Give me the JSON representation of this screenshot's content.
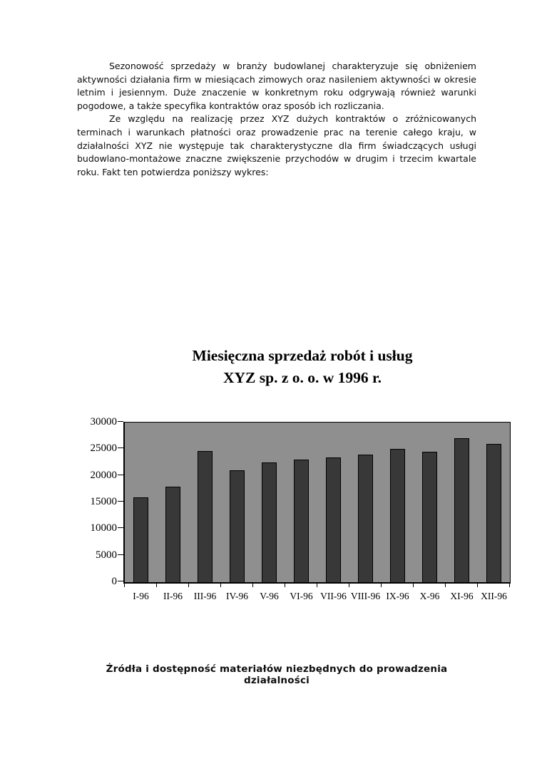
{
  "document": {
    "paragraphs": [
      "Sezonowość sprzedaży w branży budowlanej charakteryzuje się obniżeniem aktywności działania firm w miesiącach zimowych oraz nasileniem aktywności w okresie letnim i jesiennym. Duże znaczenie w konkretnym roku odgrywają również warunki pogodowe, a także specyfika kontraktów oraz sposób ich rozliczania.",
      "Ze względu na realizację przez XYZ dużych kontraktów o zróżnicowanych terminach i warunkach płatności oraz prowadzenie prac na terenie całego kraju, w działalności XYZ nie występuje tak charakterystyczne dla firm świadczących usługi budowlano-montażowe znaczne zwiększenie przychodów w drugim i trzecim kwartale roku. Fakt ten potwierdza poniższy wykres:"
    ],
    "section_heading": "Źródła i dostępność materiałów niezbędnych do prowadzenia działalności"
  },
  "chart_data": {
    "type": "bar",
    "title": "Miesięczna sprzedaż robót i usług XYZ sp. z o. o. w 1996 r.",
    "title_line1": "Miesięczna sprzedaż robót i usług",
    "title_line2": "XYZ sp. z o. o. w 1996 r.",
    "categories": [
      "I-96",
      "II-96",
      "III-96",
      "IV-96",
      "V-96",
      "VI-96",
      "VII-96",
      "VIII-96",
      "IX-96",
      "X-96",
      "XI-96",
      "XII-96"
    ],
    "values": [
      16000,
      18000,
      24700,
      21000,
      22500,
      23000,
      23500,
      24000,
      25000,
      24500,
      27000,
      26000
    ],
    "xlabel": "",
    "ylabel": "",
    "ylim": [
      0,
      30000
    ],
    "yticks": [
      0,
      5000,
      10000,
      15000,
      20000,
      25000,
      30000
    ],
    "ytick_labels": [
      "0",
      "5000",
      "10000",
      "15000",
      "20000",
      "25000",
      "30000"
    ],
    "grid": false,
    "legend_position": "none",
    "colors": {
      "plot_background": "#8f8f8f",
      "bar_fill": "#383838",
      "bar_border": "#000000",
      "axis": "#000000",
      "text": "#000000",
      "page_background": "#ffffff"
    }
  }
}
